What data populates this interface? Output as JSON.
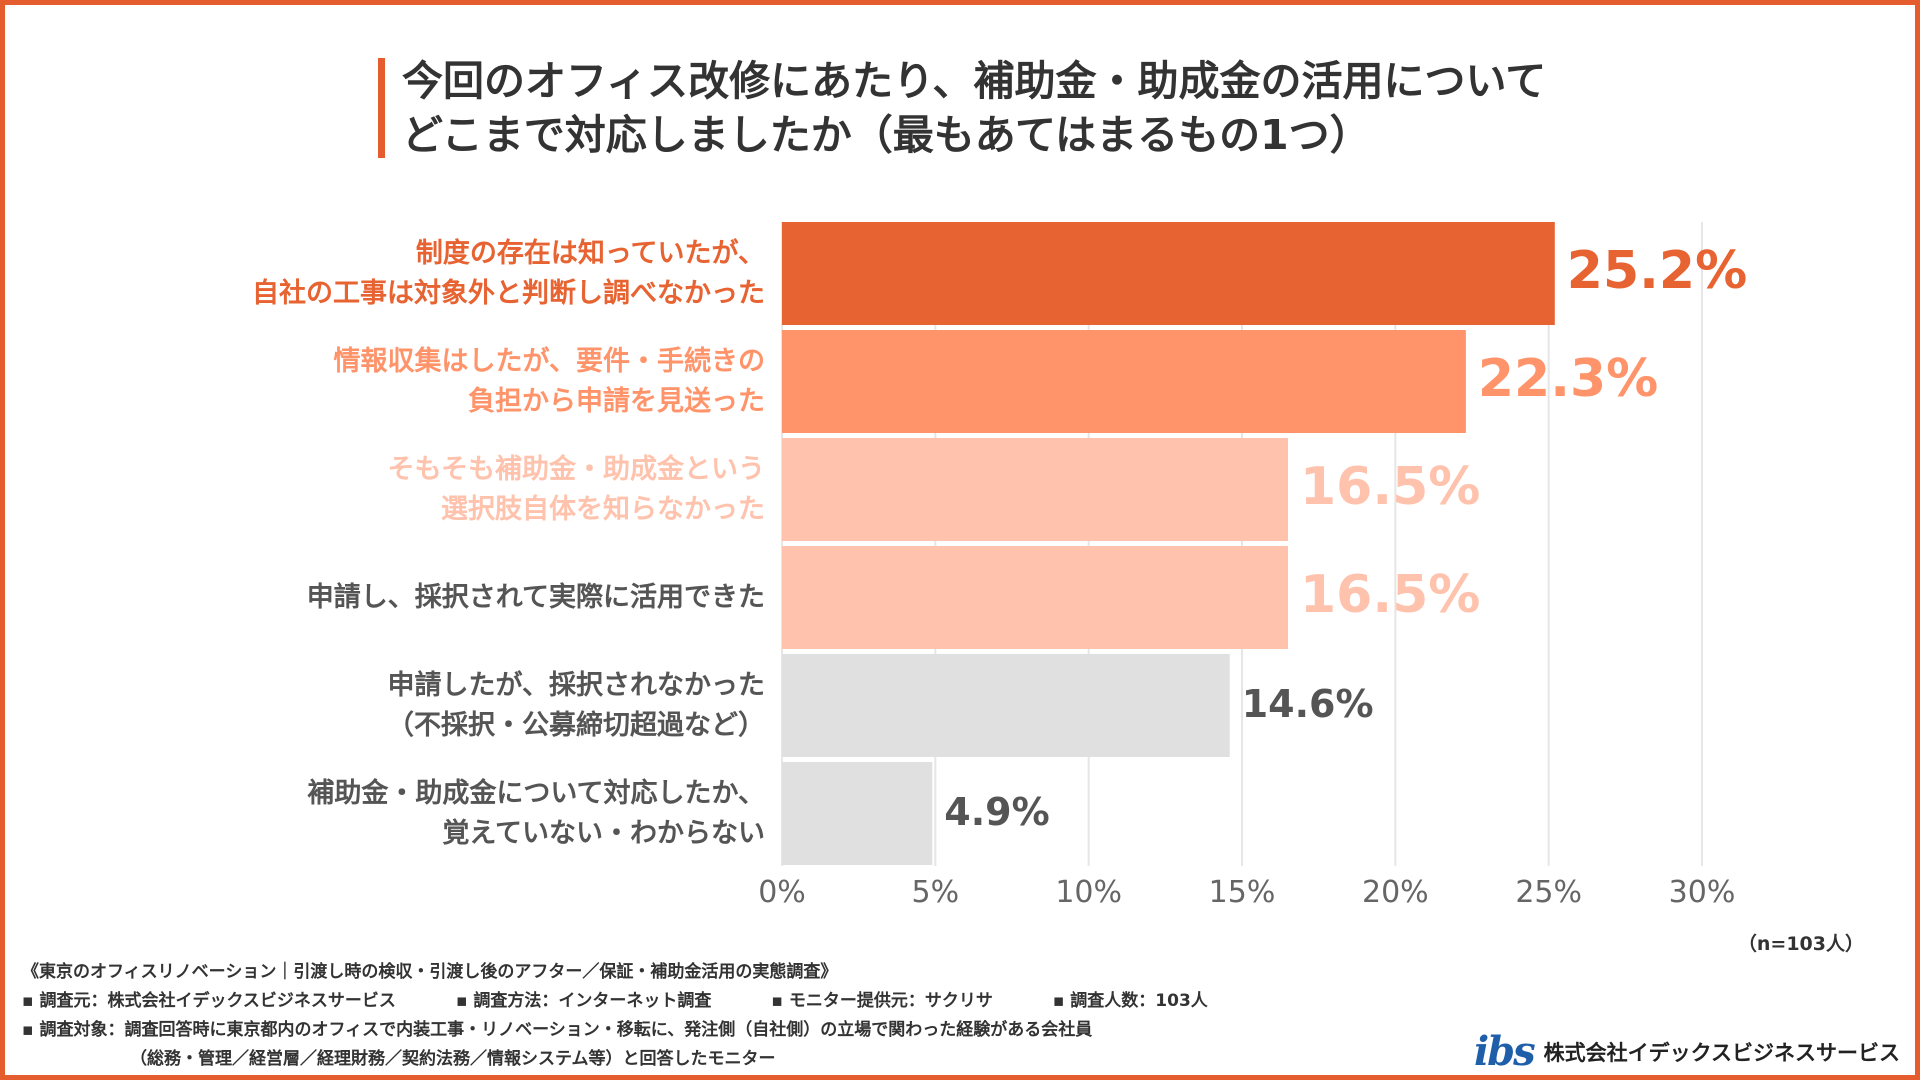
{
  "title": {
    "line1": "今回のオフィス改修にあたり、補助金・助成金の活用について",
    "line2": "どこまで対応しましたか（最もあてはまるもの1つ）"
  },
  "colors": {
    "accent": "#E55D2F",
    "tier1": "#E76332",
    "tier2": "#FF946B",
    "tier3": "#FFC2AC",
    "gray_bar": "#E0E0E0",
    "gray_text": "#555555",
    "grid": "#E6E6E6"
  },
  "chart_data": {
    "type": "bar",
    "orientation": "horizontal",
    "categories": [
      [
        "制度の存在は知っていたが、",
        "自社の工事は対象外と判断し調べなかった"
      ],
      [
        "情報収集はしたが、要件・手続きの",
        "負担から申請を見送った"
      ],
      [
        "そもそも補助金・助成金という",
        "選択肢自体を知らなかった"
      ],
      [
        "申請し、採択されて実際に活用できた"
      ],
      [
        "申請したが、採択されなかった",
        "（不採択・公募締切超過など）"
      ],
      [
        "補助金・助成金について対応したか、",
        "覚えていない・わからない"
      ]
    ],
    "values": [
      25.2,
      22.3,
      16.5,
      16.5,
      14.6,
      4.9
    ],
    "value_labels": [
      "25.2%",
      "22.3%",
      "16.5%",
      "16.5%",
      "14.6%",
      "4.9%"
    ],
    "xlim": [
      0,
      30
    ],
    "ticks": [
      0,
      5,
      10,
      15,
      20,
      25,
      30
    ],
    "tick_labels": [
      "0%",
      "5%",
      "10%",
      "15%",
      "20%",
      "25%",
      "30%"
    ],
    "grid": true,
    "legend": "none"
  },
  "sample_note": "（n=103人）",
  "footer": {
    "survey_title": "《東京のオフィスリノベーション｜引渡し時の検収・引渡し後のアフター／保証・補助金活用の実態調査》",
    "source": "▪ 調査元：株式会社イデックスビジネスサービス",
    "method": "▪ 調査方法：インターネット調査",
    "monitor": "▪ モニター提供元：サクリサ",
    "count": "▪ 調査人数：103人",
    "target_line1": "▪ 調査対象：調査回答時に東京都内のオフィスで内装工事・リノベーション・移転に、発注側（自社側）の立場で関わった経験がある会社員",
    "target_line2": "（総務・管理／経営層／経理財務／契約法務／情報システム等）と回答したモニター"
  },
  "logo": {
    "mark": "ibs",
    "name": "株式会社イデックスビジネスサービス"
  }
}
